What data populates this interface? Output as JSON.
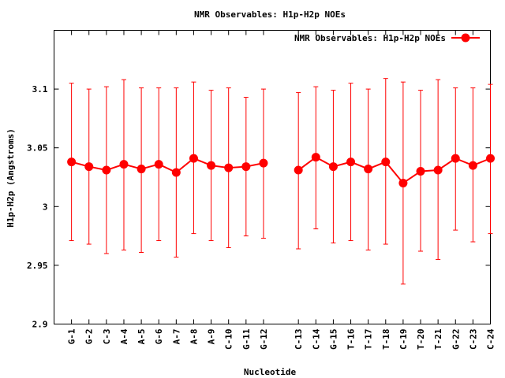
{
  "chart_data": {
    "type": "line",
    "title": "NMR Observables: H1p-H2p NOEs",
    "xlabel": "Nucleotide",
    "ylabel": "H1p-H2p (Angstroms)",
    "ylim": [
      2.9,
      3.15
    ],
    "yticks": [
      "2.9",
      "2.95",
      "3",
      "3.05",
      "3.1"
    ],
    "ytick_values": [
      2.9,
      2.95,
      3.0,
      3.05,
      3.1
    ],
    "xlim": [
      0,
      25
    ],
    "grid": false,
    "legend_position": "top-right",
    "color": "#ff0000",
    "series": [
      {
        "name": "NMR Observables: H1p-H2p NOEs",
        "points": [
          {
            "x": 1,
            "label": "G-1",
            "y": 3.038,
            "lo": 2.971,
            "hi": 3.105
          },
          {
            "x": 2,
            "label": "G-2",
            "y": 3.034,
            "lo": 2.968,
            "hi": 3.1
          },
          {
            "x": 3,
            "label": "C-3",
            "y": 3.031,
            "lo": 2.96,
            "hi": 3.102
          },
          {
            "x": 4,
            "label": "A-4",
            "y": 3.036,
            "lo": 2.963,
            "hi": 3.108
          },
          {
            "x": 5,
            "label": "A-5",
            "y": 3.032,
            "lo": 2.961,
            "hi": 3.101
          },
          {
            "x": 6,
            "label": "G-6",
            "y": 3.036,
            "lo": 2.971,
            "hi": 3.101
          },
          {
            "x": 7,
            "label": "A-7",
            "y": 3.029,
            "lo": 2.957,
            "hi": 3.101
          },
          {
            "x": 8,
            "label": "A-8",
            "y": 3.041,
            "lo": 2.977,
            "hi": 3.106
          },
          {
            "x": 9,
            "label": "A-9",
            "y": 3.035,
            "lo": 2.971,
            "hi": 3.099
          },
          {
            "x": 10,
            "label": "C-10",
            "y": 3.033,
            "lo": 2.965,
            "hi": 3.101
          },
          {
            "x": 11,
            "label": "G-11",
            "y": 3.034,
            "lo": 2.975,
            "hi": 3.093
          },
          {
            "x": 12,
            "label": "G-12",
            "y": 3.037,
            "lo": 2.973,
            "hi": 3.1
          },
          {
            "x": 14,
            "label": "C-13",
            "y": 3.031,
            "lo": 2.964,
            "hi": 3.097
          },
          {
            "x": 15,
            "label": "C-14",
            "y": 3.042,
            "lo": 2.981,
            "hi": 3.102
          },
          {
            "x": 16,
            "label": "G-15",
            "y": 3.034,
            "lo": 2.969,
            "hi": 3.099
          },
          {
            "x": 17,
            "label": "T-16",
            "y": 3.038,
            "lo": 2.971,
            "hi": 3.105
          },
          {
            "x": 18,
            "label": "T-17",
            "y": 3.032,
            "lo": 2.963,
            "hi": 3.1
          },
          {
            "x": 19,
            "label": "T-18",
            "y": 3.038,
            "lo": 2.968,
            "hi": 3.109
          },
          {
            "x": 20,
            "label": "C-19",
            "y": 3.02,
            "lo": 2.934,
            "hi": 3.106
          },
          {
            "x": 21,
            "label": "T-20",
            "y": 3.03,
            "lo": 2.962,
            "hi": 3.099
          },
          {
            "x": 22,
            "label": "T-21",
            "y": 3.031,
            "lo": 2.955,
            "hi": 3.108
          },
          {
            "x": 23,
            "label": "G-22",
            "y": 3.041,
            "lo": 2.98,
            "hi": 3.101
          },
          {
            "x": 24,
            "label": "C-23",
            "y": 3.035,
            "lo": 2.97,
            "hi": 3.101
          },
          {
            "x": 25,
            "label": "C-24",
            "y": 3.041,
            "lo": 2.977,
            "hi": 3.104
          }
        ]
      }
    ]
  }
}
